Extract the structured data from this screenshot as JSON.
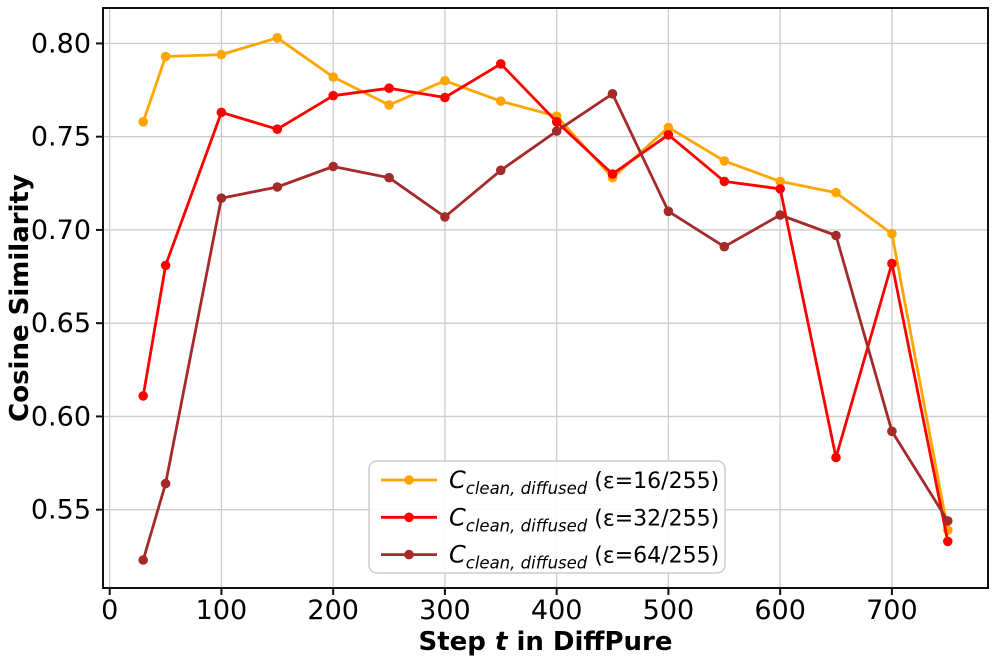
{
  "figure": {
    "background": "#FFFFFF"
  },
  "chart_data": {
    "type": "line",
    "title": "",
    "xlabel": {
      "pre": "Step ",
      "italic": "t",
      "post": " in DiffPure"
    },
    "ylabel": "Cosine Similarity",
    "x": [
      30,
      50,
      100,
      150,
      200,
      250,
      300,
      350,
      400,
      450,
      500,
      550,
      600,
      650,
      700,
      750
    ],
    "series": [
      {
        "name": "C_clean_diffused_eps_16_255",
        "color": "#FFA500",
        "legend": {
          "symbol": "C",
          "subscript": "clean, diffused",
          "suffix": " (ε=16/255)"
        },
        "values": [
          0.758,
          0.793,
          0.794,
          0.803,
          0.782,
          0.767,
          0.78,
          0.769,
          0.761,
          0.728,
          0.755,
          0.737,
          0.726,
          0.72,
          0.698,
          0.539
        ]
      },
      {
        "name": "C_clean_diffused_eps_32_255",
        "color": "#FF0000",
        "legend": {
          "symbol": "C",
          "subscript": "clean, diffused",
          "suffix": " (ε=32/255)"
        },
        "values": [
          0.611,
          0.681,
          0.763,
          0.754,
          0.772,
          0.776,
          0.771,
          0.789,
          0.758,
          0.73,
          0.751,
          0.726,
          0.722,
          0.578,
          0.682,
          0.533
        ]
      },
      {
        "name": "C_clean_diffused_eps_64_255",
        "color": "#A52A2A",
        "legend": {
          "symbol": "C",
          "subscript": "clean, diffused",
          "suffix": " (ε=64/255)"
        },
        "values": [
          0.523,
          0.564,
          0.717,
          0.723,
          0.734,
          0.728,
          0.707,
          0.732,
          0.753,
          0.773,
          0.71,
          0.691,
          0.708,
          0.697,
          0.592,
          0.544
        ]
      }
    ],
    "xlim": [
      -6,
      786
    ],
    "ylim": [
      0.508,
      0.819
    ],
    "xticks": [
      0,
      100,
      200,
      300,
      400,
      500,
      600,
      700
    ],
    "yticks": [
      0.55,
      0.6,
      0.65,
      0.7,
      0.75,
      0.8
    ],
    "grid": true,
    "legend_position": "lower center"
  },
  "style_colors": {
    "grid": "#CCCCCC",
    "spine": "#111111",
    "tick_label": "#000000",
    "legend_border": "#CCCCCC",
    "legend_bg": "#FFFFFF"
  }
}
